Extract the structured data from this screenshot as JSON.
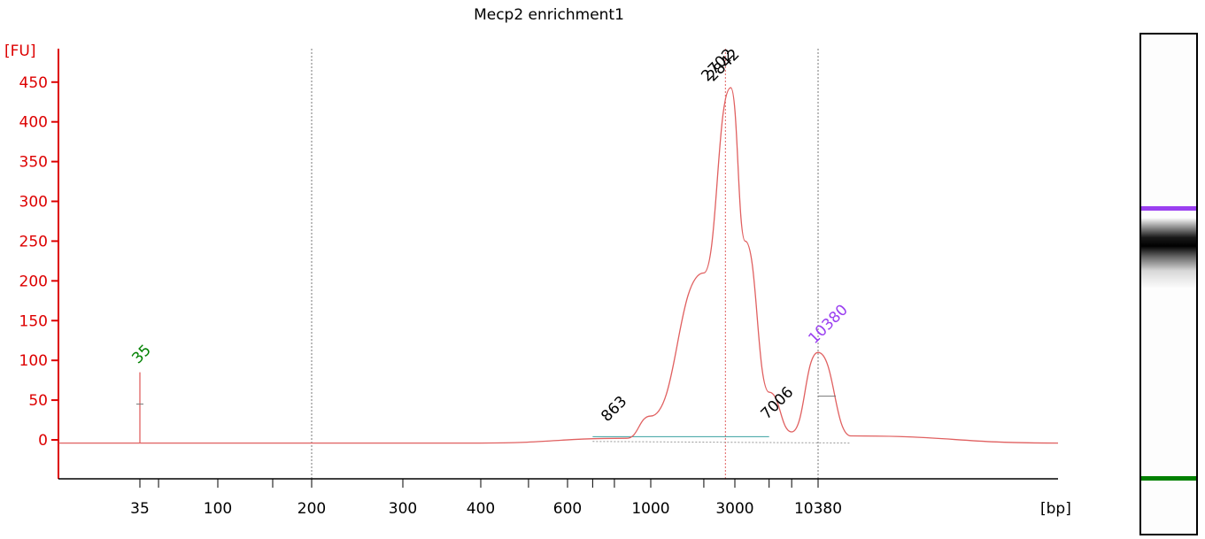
{
  "chart_data": {
    "type": "line",
    "title": "Mecp2 enrichment1",
    "ylabel": "[FU]",
    "xlabel": "[bp]",
    "ylim": [
      -50,
      480
    ],
    "yticks": [
      0,
      50,
      100,
      150,
      200,
      250,
      300,
      350,
      400,
      450
    ],
    "x_tick_labels": [
      "35",
      "100",
      "200",
      "300",
      "400",
      "600",
      "1000",
      "3000",
      "10380"
    ],
    "series": [
      {
        "color": "#e06060",
        "points": [
          [
            "35",
            -4
          ],
          [
            "35",
            85
          ],
          [
            "35",
            -4
          ],
          [
            "200",
            -4
          ],
          [
            "400",
            -4
          ],
          [
            "863",
            2
          ],
          [
            "1000",
            30
          ],
          [
            "2000",
            210
          ],
          [
            "2842",
            443
          ],
          [
            "3500",
            250
          ],
          [
            "5000",
            60
          ],
          [
            "7006",
            10
          ],
          [
            "10380",
            110
          ],
          [
            "12000",
            5
          ]
        ]
      }
    ],
    "peaks": [
      {
        "label": "35",
        "bp": 35,
        "color": "#008000"
      },
      {
        "label": "863",
        "bp": 863,
        "color": "#000000"
      },
      {
        "label": "2842",
        "bp": 2842,
        "color": "#000000"
      },
      {
        "label": "2702",
        "bp": 2702,
        "color": "#000000"
      },
      {
        "label": "7006",
        "bp": 7006,
        "color": "#000000"
      },
      {
        "label": "10380",
        "bp": 10380,
        "color": "#9a3ff0"
      }
    ],
    "colors": {
      "axis": "#dd0000",
      "trace": "#e06060",
      "lower_marker": "#008000",
      "upper_marker": "#9a3ff0",
      "baseline": "#3aa0a0"
    },
    "gel_bands": [
      {
        "name": "upper-marker",
        "color": "#9a3ff0",
        "level": 0.35
      },
      {
        "name": "sample-band",
        "color": "#000000",
        "level": 0.42
      },
      {
        "name": "lower-marker",
        "color": "#008000",
        "level": 0.89
      }
    ]
  }
}
